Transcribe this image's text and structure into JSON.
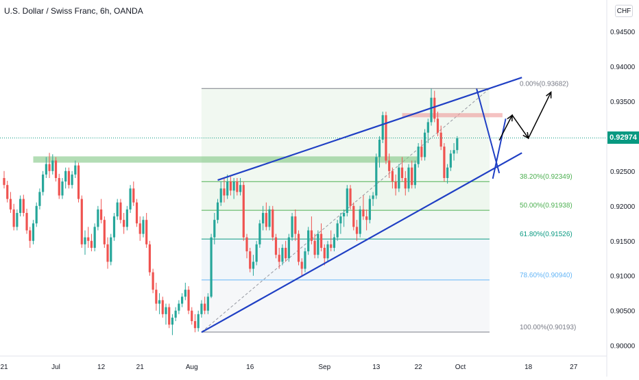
{
  "header": {
    "title": "U.S. Dollar / Swiss Franc, 6h, OANDA",
    "currency": "CHF"
  },
  "colors": {
    "up": "#26a69a",
    "down": "#ef5350",
    "channel": "#1f3fc4",
    "support_zone": "#81c784",
    "resistance_zone": "#ef9a9a",
    "current_price": "#089981"
  },
  "chart_data": {
    "type": "candlestick",
    "symbol": "USDCHF",
    "timeframe": "6h",
    "y_axis": {
      "ticks": [
        "0.94000",
        "0.93500",
        "0.92500",
        "0.92000",
        "0.91500",
        "0.91000",
        "0.90500",
        "0.90000"
      ],
      "tick_values": [
        0.94,
        0.935,
        0.925,
        0.92,
        0.915,
        0.91,
        0.905,
        0.9
      ],
      "extra_ticks": [
        "0.94500"
      ],
      "extra_values": [
        0.945
      ],
      "range": [
        0.8985,
        0.9495
      ]
    },
    "x_axis": {
      "ticks": [
        "21",
        "Jul",
        "12",
        "21",
        "Aug",
        "16",
        "Sep",
        "13",
        "22",
        "Oct",
        "18",
        "27"
      ],
      "tick_index": [
        0,
        16,
        30,
        42,
        58,
        76,
        99,
        115,
        128,
        141,
        162,
        176
      ]
    },
    "current_price": "0.92974",
    "current_value": 0.92974,
    "fibonacci": {
      "levels": [
        {
          "label": "0.00%(0.93682)",
          "value": 0.93682
        },
        {
          "label": "38.20%(0.92349)",
          "value": 0.92349
        },
        {
          "label": "50.00%(0.91938)",
          "value": 0.91938
        },
        {
          "label": "61.80%(0.91526)",
          "value": 0.91526
        },
        {
          "label": "78.60%(0.90940)",
          "value": 0.9094
        },
        {
          "label": "100.00%(0.90193)",
          "value": 0.90193
        }
      ],
      "start_index": 61,
      "end_index": 150
    },
    "zones": [
      {
        "name": "support",
        "from_index": 9,
        "to_index": 128,
        "low": 0.9262,
        "high": 0.9271
      },
      {
        "name": "resistance",
        "from_index": 123,
        "to_index": 154,
        "low": 0.9327,
        "high": 0.9333
      }
    ],
    "channel": {
      "upper": [
        {
          "i": 66,
          "v": 0.9237
        },
        {
          "i": 160,
          "v": 0.9384
        }
      ],
      "lower": [
        {
          "i": 61,
          "v": 0.9019
        },
        {
          "i": 160,
          "v": 0.9276
        }
      ]
    },
    "series": [
      {
        "o": 0.924,
        "h": 0.925,
        "l": 0.9225,
        "c": 0.923
      },
      {
        "o": 0.923,
        "h": 0.9236,
        "l": 0.9205,
        "c": 0.921
      },
      {
        "o": 0.921,
        "h": 0.922,
        "l": 0.919,
        "c": 0.9195
      },
      {
        "o": 0.9195,
        "h": 0.9203,
        "l": 0.9165,
        "c": 0.917
      },
      {
        "o": 0.917,
        "h": 0.9195,
        "l": 0.9165,
        "c": 0.919
      },
      {
        "o": 0.919,
        "h": 0.9215,
        "l": 0.9185,
        "c": 0.921
      },
      {
        "o": 0.921,
        "h": 0.9216,
        "l": 0.9185,
        "c": 0.919
      },
      {
        "o": 0.919,
        "h": 0.9196,
        "l": 0.916,
        "c": 0.9165
      },
      {
        "o": 0.9165,
        "h": 0.917,
        "l": 0.914,
        "c": 0.915
      },
      {
        "o": 0.915,
        "h": 0.918,
        "l": 0.9145,
        "c": 0.9175
      },
      {
        "o": 0.9175,
        "h": 0.9205,
        "l": 0.917,
        "c": 0.92
      },
      {
        "o": 0.92,
        "h": 0.9225,
        "l": 0.9195,
        "c": 0.922
      },
      {
        "o": 0.922,
        "h": 0.925,
        "l": 0.9215,
        "c": 0.9245
      },
      {
        "o": 0.9245,
        "h": 0.927,
        "l": 0.924,
        "c": 0.926
      },
      {
        "o": 0.926,
        "h": 0.9276,
        "l": 0.924,
        "c": 0.925
      },
      {
        "o": 0.925,
        "h": 0.9274,
        "l": 0.9245,
        "c": 0.9265
      },
      {
        "o": 0.9265,
        "h": 0.927,
        "l": 0.9235,
        "c": 0.924
      },
      {
        "o": 0.924,
        "h": 0.9246,
        "l": 0.921,
        "c": 0.9215
      },
      {
        "o": 0.9215,
        "h": 0.924,
        "l": 0.921,
        "c": 0.9235
      },
      {
        "o": 0.9235,
        "h": 0.9255,
        "l": 0.9225,
        "c": 0.925
      },
      {
        "o": 0.925,
        "h": 0.9255,
        "l": 0.9225,
        "c": 0.923
      },
      {
        "o": 0.923,
        "h": 0.925,
        "l": 0.9225,
        "c": 0.9245
      },
      {
        "o": 0.9245,
        "h": 0.9265,
        "l": 0.924,
        "c": 0.9258
      },
      {
        "o": 0.9258,
        "h": 0.9262,
        "l": 0.9205,
        "c": 0.921
      },
      {
        "o": 0.921,
        "h": 0.9215,
        "l": 0.914,
        "c": 0.9145
      },
      {
        "o": 0.9145,
        "h": 0.9165,
        "l": 0.913,
        "c": 0.9155
      },
      {
        "o": 0.9155,
        "h": 0.917,
        "l": 0.914,
        "c": 0.915
      },
      {
        "o": 0.915,
        "h": 0.916,
        "l": 0.9135,
        "c": 0.914
      },
      {
        "o": 0.914,
        "h": 0.9175,
        "l": 0.9135,
        "c": 0.917
      },
      {
        "o": 0.917,
        "h": 0.92,
        "l": 0.9165,
        "c": 0.9195
      },
      {
        "o": 0.9195,
        "h": 0.921,
        "l": 0.9175,
        "c": 0.918
      },
      {
        "o": 0.918,
        "h": 0.9185,
        "l": 0.914,
        "c": 0.9145
      },
      {
        "o": 0.9145,
        "h": 0.9155,
        "l": 0.911,
        "c": 0.912
      },
      {
        "o": 0.912,
        "h": 0.916,
        "l": 0.9115,
        "c": 0.9155
      },
      {
        "o": 0.9155,
        "h": 0.919,
        "l": 0.915,
        "c": 0.9185
      },
      {
        "o": 0.9185,
        "h": 0.921,
        "l": 0.918,
        "c": 0.9205
      },
      {
        "o": 0.9205,
        "h": 0.921,
        "l": 0.9175,
        "c": 0.918
      },
      {
        "o": 0.918,
        "h": 0.919,
        "l": 0.916,
        "c": 0.917
      },
      {
        "o": 0.917,
        "h": 0.92,
        "l": 0.9165,
        "c": 0.9195
      },
      {
        "o": 0.9195,
        "h": 0.923,
        "l": 0.919,
        "c": 0.9225
      },
      {
        "o": 0.9225,
        "h": 0.9235,
        "l": 0.92,
        "c": 0.9205
      },
      {
        "o": 0.9205,
        "h": 0.921,
        "l": 0.917,
        "c": 0.9175
      },
      {
        "o": 0.9175,
        "h": 0.9185,
        "l": 0.915,
        "c": 0.916
      },
      {
        "o": 0.916,
        "h": 0.9185,
        "l": 0.9155,
        "c": 0.918
      },
      {
        "o": 0.918,
        "h": 0.919,
        "l": 0.914,
        "c": 0.9145
      },
      {
        "o": 0.9145,
        "h": 0.915,
        "l": 0.91,
        "c": 0.9105
      },
      {
        "o": 0.9105,
        "h": 0.911,
        "l": 0.9075,
        "c": 0.908
      },
      {
        "o": 0.908,
        "h": 0.909,
        "l": 0.905,
        "c": 0.906
      },
      {
        "o": 0.906,
        "h": 0.9075,
        "l": 0.9045,
        "c": 0.9065
      },
      {
        "o": 0.9065,
        "h": 0.907,
        "l": 0.904,
        "c": 0.9045
      },
      {
        "o": 0.9045,
        "h": 0.906,
        "l": 0.903,
        "c": 0.9055
      },
      {
        "o": 0.9055,
        "h": 0.906,
        "l": 0.9025,
        "c": 0.903
      },
      {
        "o": 0.903,
        "h": 0.9045,
        "l": 0.9015,
        "c": 0.904
      },
      {
        "o": 0.904,
        "h": 0.9055,
        "l": 0.9035,
        "c": 0.905
      },
      {
        "o": 0.905,
        "h": 0.9065,
        "l": 0.9045,
        "c": 0.906
      },
      {
        "o": 0.906,
        "h": 0.9075,
        "l": 0.9055,
        "c": 0.907
      },
      {
        "o": 0.907,
        "h": 0.909,
        "l": 0.9065,
        "c": 0.908
      },
      {
        "o": 0.908,
        "h": 0.9085,
        "l": 0.9045,
        "c": 0.905
      },
      {
        "o": 0.905,
        "h": 0.9055,
        "l": 0.903,
        "c": 0.9035
      },
      {
        "o": 0.9035,
        "h": 0.9045,
        "l": 0.9019,
        "c": 0.9025
      },
      {
        "o": 0.9025,
        "h": 0.905,
        "l": 0.902,
        "c": 0.9045
      },
      {
        "o": 0.9045,
        "h": 0.9065,
        "l": 0.904,
        "c": 0.906
      },
      {
        "o": 0.906,
        "h": 0.907,
        "l": 0.9045,
        "c": 0.905
      },
      {
        "o": 0.905,
        "h": 0.9075,
        "l": 0.9045,
        "c": 0.907
      },
      {
        "o": 0.907,
        "h": 0.916,
        "l": 0.9068,
        "c": 0.9155
      },
      {
        "o": 0.9155,
        "h": 0.919,
        "l": 0.9145,
        "c": 0.918
      },
      {
        "o": 0.918,
        "h": 0.921,
        "l": 0.9175,
        "c": 0.9205
      },
      {
        "o": 0.9205,
        "h": 0.9235,
        "l": 0.92,
        "c": 0.9225
      },
      {
        "o": 0.9225,
        "h": 0.924,
        "l": 0.9205,
        "c": 0.9215
      },
      {
        "o": 0.9215,
        "h": 0.9245,
        "l": 0.921,
        "c": 0.9235
      },
      {
        "o": 0.9235,
        "h": 0.9242,
        "l": 0.9215,
        "c": 0.9222
      },
      {
        "o": 0.9222,
        "h": 0.924,
        "l": 0.921,
        "c": 0.9235
      },
      {
        "o": 0.9235,
        "h": 0.924,
        "l": 0.9215,
        "c": 0.922
      },
      {
        "o": 0.922,
        "h": 0.924,
        "l": 0.9215,
        "c": 0.923
      },
      {
        "o": 0.923,
        "h": 0.9235,
        "l": 0.915,
        "c": 0.9155
      },
      {
        "o": 0.9155,
        "h": 0.916,
        "l": 0.9125,
        "c": 0.9135
      },
      {
        "o": 0.9135,
        "h": 0.914,
        "l": 0.9105,
        "c": 0.911
      },
      {
        "o": 0.911,
        "h": 0.913,
        "l": 0.91,
        "c": 0.912
      },
      {
        "o": 0.912,
        "h": 0.915,
        "l": 0.9115,
        "c": 0.9145
      },
      {
        "o": 0.9145,
        "h": 0.918,
        "l": 0.914,
        "c": 0.9175
      },
      {
        "o": 0.9175,
        "h": 0.92,
        "l": 0.9165,
        "c": 0.919
      },
      {
        "o": 0.919,
        "h": 0.9205,
        "l": 0.9165,
        "c": 0.917
      },
      {
        "o": 0.917,
        "h": 0.92,
        "l": 0.9165,
        "c": 0.9195
      },
      {
        "o": 0.9195,
        "h": 0.92,
        "l": 0.915,
        "c": 0.9155
      },
      {
        "o": 0.9155,
        "h": 0.916,
        "l": 0.9125,
        "c": 0.913
      },
      {
        "o": 0.913,
        "h": 0.914,
        "l": 0.911,
        "c": 0.912
      },
      {
        "o": 0.912,
        "h": 0.9145,
        "l": 0.9115,
        "c": 0.914
      },
      {
        "o": 0.914,
        "h": 0.915,
        "l": 0.912,
        "c": 0.9125
      },
      {
        "o": 0.9125,
        "h": 0.916,
        "l": 0.912,
        "c": 0.9155
      },
      {
        "o": 0.9155,
        "h": 0.919,
        "l": 0.915,
        "c": 0.9185
      },
      {
        "o": 0.9185,
        "h": 0.9195,
        "l": 0.915,
        "c": 0.916
      },
      {
        "o": 0.916,
        "h": 0.9165,
        "l": 0.9115,
        "c": 0.912
      },
      {
        "o": 0.912,
        "h": 0.9125,
        "l": 0.91,
        "c": 0.911
      },
      {
        "o": 0.911,
        "h": 0.914,
        "l": 0.9105,
        "c": 0.9135
      },
      {
        "o": 0.9135,
        "h": 0.917,
        "l": 0.913,
        "c": 0.9165
      },
      {
        "o": 0.9165,
        "h": 0.9185,
        "l": 0.9145,
        "c": 0.915
      },
      {
        "o": 0.915,
        "h": 0.916,
        "l": 0.9125,
        "c": 0.913
      },
      {
        "o": 0.913,
        "h": 0.9165,
        "l": 0.9125,
        "c": 0.916
      },
      {
        "o": 0.916,
        "h": 0.9175,
        "l": 0.9135,
        "c": 0.914
      },
      {
        "o": 0.914,
        "h": 0.9145,
        "l": 0.9115,
        "c": 0.9125
      },
      {
        "o": 0.9125,
        "h": 0.915,
        "l": 0.912,
        "c": 0.9145
      },
      {
        "o": 0.9145,
        "h": 0.9165,
        "l": 0.9135,
        "c": 0.914
      },
      {
        "o": 0.914,
        "h": 0.916,
        "l": 0.9135,
        "c": 0.9155
      },
      {
        "o": 0.9155,
        "h": 0.918,
        "l": 0.915,
        "c": 0.9175
      },
      {
        "o": 0.9175,
        "h": 0.919,
        "l": 0.916,
        "c": 0.9185
      },
      {
        "o": 0.9185,
        "h": 0.9195,
        "l": 0.917,
        "c": 0.919
      },
      {
        "o": 0.919,
        "h": 0.923,
        "l": 0.9185,
        "c": 0.9225
      },
      {
        "o": 0.9225,
        "h": 0.923,
        "l": 0.9195,
        "c": 0.92
      },
      {
        "o": 0.92,
        "h": 0.9205,
        "l": 0.9165,
        "c": 0.917
      },
      {
        "o": 0.917,
        "h": 0.918,
        "l": 0.915,
        "c": 0.916
      },
      {
        "o": 0.916,
        "h": 0.92,
        "l": 0.9155,
        "c": 0.9195
      },
      {
        "o": 0.9195,
        "h": 0.9215,
        "l": 0.918,
        "c": 0.9185
      },
      {
        "o": 0.9185,
        "h": 0.9195,
        "l": 0.9165,
        "c": 0.918
      },
      {
        "o": 0.918,
        "h": 0.9215,
        "l": 0.9175,
        "c": 0.921
      },
      {
        "o": 0.921,
        "h": 0.922,
        "l": 0.92,
        "c": 0.9215
      },
      {
        "o": 0.9215,
        "h": 0.9275,
        "l": 0.921,
        "c": 0.927
      },
      {
        "o": 0.927,
        "h": 0.93,
        "l": 0.9255,
        "c": 0.9295
      },
      {
        "o": 0.9295,
        "h": 0.9335,
        "l": 0.929,
        "c": 0.933
      },
      {
        "o": 0.933,
        "h": 0.9335,
        "l": 0.926,
        "c": 0.9265
      },
      {
        "o": 0.9265,
        "h": 0.9275,
        "l": 0.924,
        "c": 0.925
      },
      {
        "o": 0.925,
        "h": 0.9255,
        "l": 0.9225,
        "c": 0.9235
      },
      {
        "o": 0.9235,
        "h": 0.9245,
        "l": 0.9215,
        "c": 0.9225
      },
      {
        "o": 0.9225,
        "h": 0.926,
        "l": 0.922,
        "c": 0.9255
      },
      {
        "o": 0.9255,
        "h": 0.927,
        "l": 0.9235,
        "c": 0.924
      },
      {
        "o": 0.924,
        "h": 0.925,
        "l": 0.9215,
        "c": 0.9225
      },
      {
        "o": 0.9225,
        "h": 0.926,
        "l": 0.922,
        "c": 0.9255
      },
      {
        "o": 0.9255,
        "h": 0.9265,
        "l": 0.9225,
        "c": 0.923
      },
      {
        "o": 0.923,
        "h": 0.9265,
        "l": 0.9225,
        "c": 0.926
      },
      {
        "o": 0.926,
        "h": 0.929,
        "l": 0.9255,
        "c": 0.9285
      },
      {
        "o": 0.9285,
        "h": 0.9295,
        "l": 0.9265,
        "c": 0.927
      },
      {
        "o": 0.927,
        "h": 0.931,
        "l": 0.9265,
        "c": 0.9305
      },
      {
        "o": 0.9305,
        "h": 0.9325,
        "l": 0.929,
        "c": 0.932
      },
      {
        "o": 0.932,
        "h": 0.9368,
        "l": 0.9315,
        "c": 0.9355
      },
      {
        "o": 0.9355,
        "h": 0.9365,
        "l": 0.932,
        "c": 0.9325
      },
      {
        "o": 0.9325,
        "h": 0.9335,
        "l": 0.93,
        "c": 0.9305
      },
      {
        "o": 0.9305,
        "h": 0.9315,
        "l": 0.928,
        "c": 0.9285
      },
      {
        "o": 0.9285,
        "h": 0.929,
        "l": 0.9235,
        "c": 0.924
      },
      {
        "o": 0.924,
        "h": 0.926,
        "l": 0.9232,
        "c": 0.9255
      },
      {
        "o": 0.9255,
        "h": 0.928,
        "l": 0.925,
        "c": 0.9275
      },
      {
        "o": 0.9275,
        "h": 0.929,
        "l": 0.9265,
        "c": 0.928
      },
      {
        "o": 0.928,
        "h": 0.93,
        "l": 0.9275,
        "c": 0.9297
      }
    ]
  }
}
